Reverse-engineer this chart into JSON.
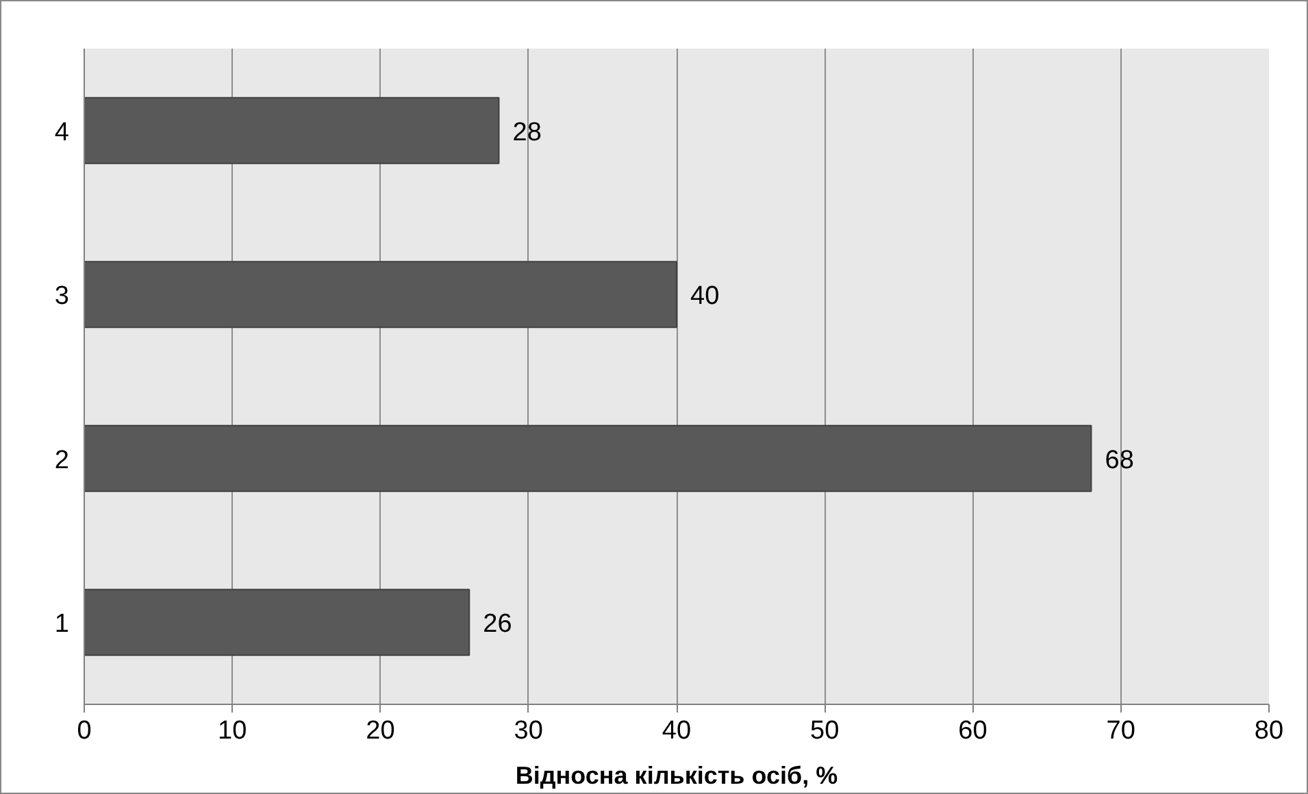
{
  "chart_data": {
    "type": "bar",
    "orientation": "horizontal",
    "categories": [
      "4",
      "3",
      "2",
      "1"
    ],
    "values": [
      28,
      40,
      68,
      26
    ],
    "color": "#595959",
    "xlim": [
      0,
      80
    ],
    "xticks": [
      0,
      10,
      20,
      30,
      40,
      50,
      60,
      70,
      80
    ],
    "xlabel": "Відносна кількість осіб, %",
    "grid": "x",
    "data_labels": true
  }
}
